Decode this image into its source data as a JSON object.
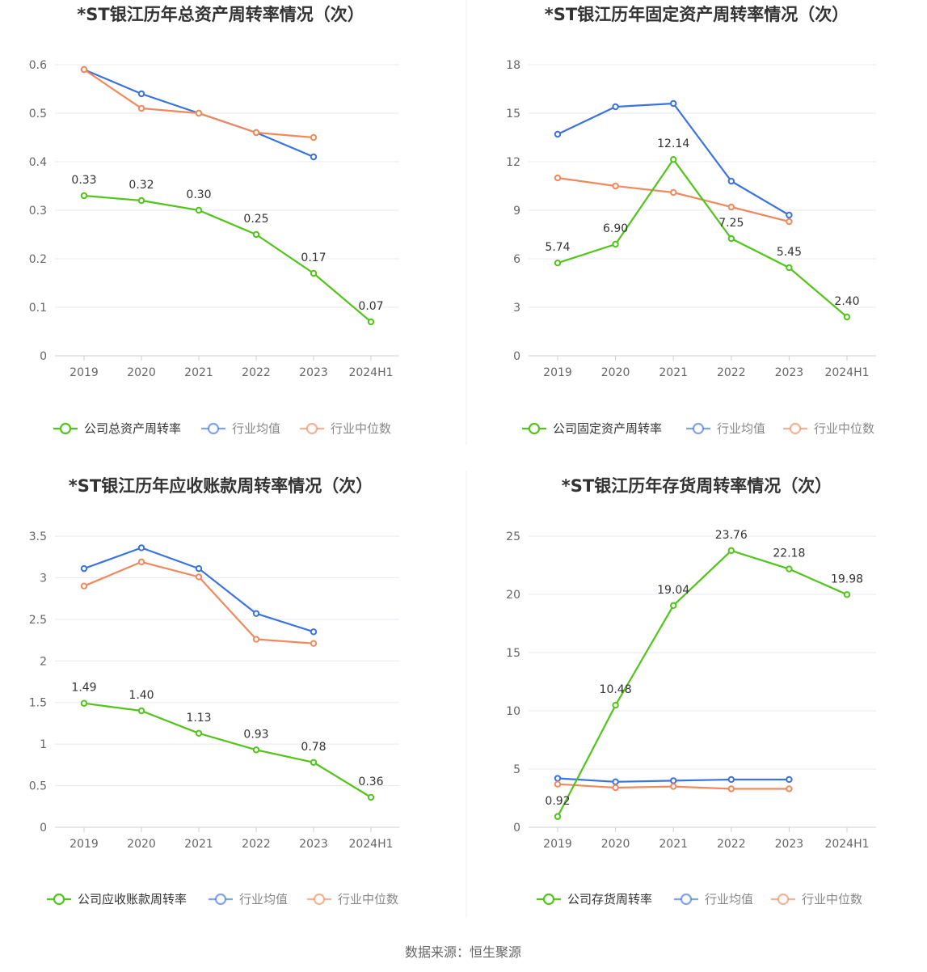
{
  "source": "数据来源：恒生聚源",
  "colors": {
    "company": "#52c41a",
    "industry_avg": "#3a73e0",
    "industry_median": "#f08a5d",
    "grid": "#e8e8f0",
    "axis": "#cfcfcf"
  },
  "chart_data": [
    {
      "type": "line",
      "title": "*ST银江历年总资产周转率情况（次）",
      "categories": [
        "2019",
        "2020",
        "2021",
        "2022",
        "2023",
        "2024H1"
      ],
      "ylim": [
        0,
        0.6
      ],
      "yticks": [
        0,
        0.1,
        0.2,
        0.3,
        0.4,
        0.5,
        0.6
      ],
      "ytick_labels": [
        "0",
        "0.1",
        "0.2",
        "0.3",
        "0.4",
        "0.5",
        "0.6"
      ],
      "grid": true,
      "legend": "bottom",
      "series": [
        {
          "name": "公司总资产周转率",
          "role": "company",
          "values": [
            0.33,
            0.32,
            0.3,
            0.25,
            0.17,
            0.07
          ],
          "labels": [
            "0.33",
            "0.32",
            "0.30",
            "0.25",
            "0.17",
            "0.07"
          ]
        },
        {
          "name": "行业均值",
          "role": "industry_avg",
          "values": [
            0.59,
            0.54,
            0.5,
            0.46,
            0.41,
            null
          ]
        },
        {
          "name": "行业中位数",
          "role": "industry_median",
          "values": [
            0.59,
            0.51,
            0.5,
            0.46,
            0.45,
            null
          ]
        }
      ]
    },
    {
      "type": "line",
      "title": "*ST银江历年固定资产周转率情况（次）",
      "categories": [
        "2019",
        "2020",
        "2021",
        "2022",
        "2023",
        "2024H1"
      ],
      "ylim": [
        0,
        18
      ],
      "yticks": [
        0,
        3,
        6,
        9,
        12,
        15,
        18
      ],
      "ytick_labels": [
        "0",
        "3",
        "6",
        "9",
        "12",
        "15",
        "18"
      ],
      "grid": true,
      "legend": "bottom",
      "series": [
        {
          "name": "公司固定资产周转率",
          "role": "company",
          "values": [
            5.74,
            6.9,
            12.14,
            7.25,
            5.45,
            2.4
          ],
          "labels": [
            "5.74",
            "6.90",
            "12.14",
            "7.25",
            "5.45",
            "2.40"
          ]
        },
        {
          "name": "行业均值",
          "role": "industry_avg",
          "values": [
            13.7,
            15.4,
            15.6,
            10.8,
            8.7,
            null
          ]
        },
        {
          "name": "行业中位数",
          "role": "industry_median",
          "values": [
            11.0,
            10.5,
            10.1,
            9.2,
            8.3,
            null
          ]
        }
      ]
    },
    {
      "type": "line",
      "title": "*ST银江历年应收账款周转率情况（次）",
      "categories": [
        "2019",
        "2020",
        "2021",
        "2022",
        "2023",
        "2024H1"
      ],
      "ylim": [
        0,
        3.5
      ],
      "yticks": [
        0,
        0.5,
        1,
        1.5,
        2,
        2.5,
        3,
        3.5
      ],
      "ytick_labels": [
        "0",
        "0.5",
        "1",
        "1.5",
        "2",
        "2.5",
        "3",
        "3.5"
      ],
      "grid": true,
      "legend": "bottom",
      "series": [
        {
          "name": "公司应收账款周转率",
          "role": "company",
          "values": [
            1.49,
            1.4,
            1.13,
            0.93,
            0.78,
            0.36
          ],
          "labels": [
            "1.49",
            "1.40",
            "1.13",
            "0.93",
            "0.78",
            "0.36"
          ]
        },
        {
          "name": "行业均值",
          "role": "industry_avg",
          "values": [
            3.11,
            3.36,
            3.11,
            2.57,
            2.35,
            null
          ]
        },
        {
          "name": "行业中位数",
          "role": "industry_median",
          "values": [
            2.9,
            3.19,
            3.01,
            2.26,
            2.21,
            null
          ]
        }
      ]
    },
    {
      "type": "line",
      "title": "*ST银江历年存货周转率情况（次）",
      "categories": [
        "2019",
        "2020",
        "2021",
        "2022",
        "2023",
        "2024H1"
      ],
      "ylim": [
        0,
        25
      ],
      "yticks": [
        0,
        5,
        10,
        15,
        20,
        25
      ],
      "ytick_labels": [
        "0",
        "5",
        "10",
        "15",
        "20",
        "25"
      ],
      "grid": true,
      "legend": "bottom",
      "series": [
        {
          "name": "公司存货周转率",
          "role": "company",
          "values": [
            0.92,
            10.48,
            19.04,
            23.76,
            22.18,
            19.98
          ],
          "labels": [
            "0.92",
            "10.48",
            "19.04",
            "23.76",
            "22.18",
            "19.98"
          ]
        },
        {
          "name": "行业均值",
          "role": "industry_avg",
          "values": [
            4.2,
            3.9,
            4.0,
            4.1,
            4.1,
            null
          ]
        },
        {
          "name": "行业中位数",
          "role": "industry_median",
          "values": [
            3.7,
            3.4,
            3.5,
            3.3,
            3.3,
            null
          ]
        }
      ]
    }
  ]
}
